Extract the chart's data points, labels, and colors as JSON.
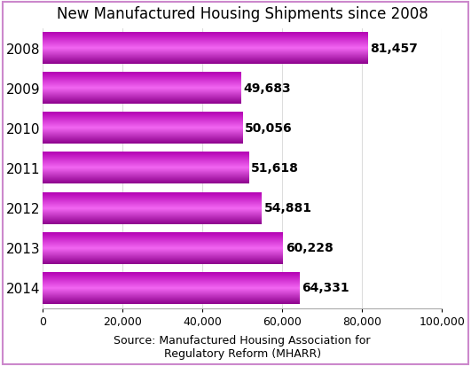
{
  "title": "New Manufactured Housing Shipments since 2008",
  "years": [
    "2008",
    "2009",
    "2010",
    "2011",
    "2012",
    "2013",
    "2014"
  ],
  "values": [
    81457,
    49683,
    50056,
    51618,
    54881,
    60228,
    64331
  ],
  "labels": [
    "81,457",
    "49,683",
    "50,056",
    "51,618",
    "54,881",
    "60,228",
    "64,331"
  ],
  "bar_color_top": "#CC00CC",
  "bar_color_mid": "#EE44EE",
  "bar_color_bot": "#AA00AA",
  "background_color": "#FFFFFF",
  "border_color": "#CC88CC",
  "xlabel_source": "Source: Manufactured Housing Association for\nRegulatory Reform (MHARR)",
  "xlim": [
    0,
    100000
  ],
  "xticks": [
    0,
    20000,
    40000,
    60000,
    80000,
    100000
  ],
  "title_fontsize": 12,
  "label_fontsize": 10,
  "tick_fontsize": 9,
  "source_fontsize": 9,
  "year_fontsize": 11,
  "bar_height": 0.78
}
